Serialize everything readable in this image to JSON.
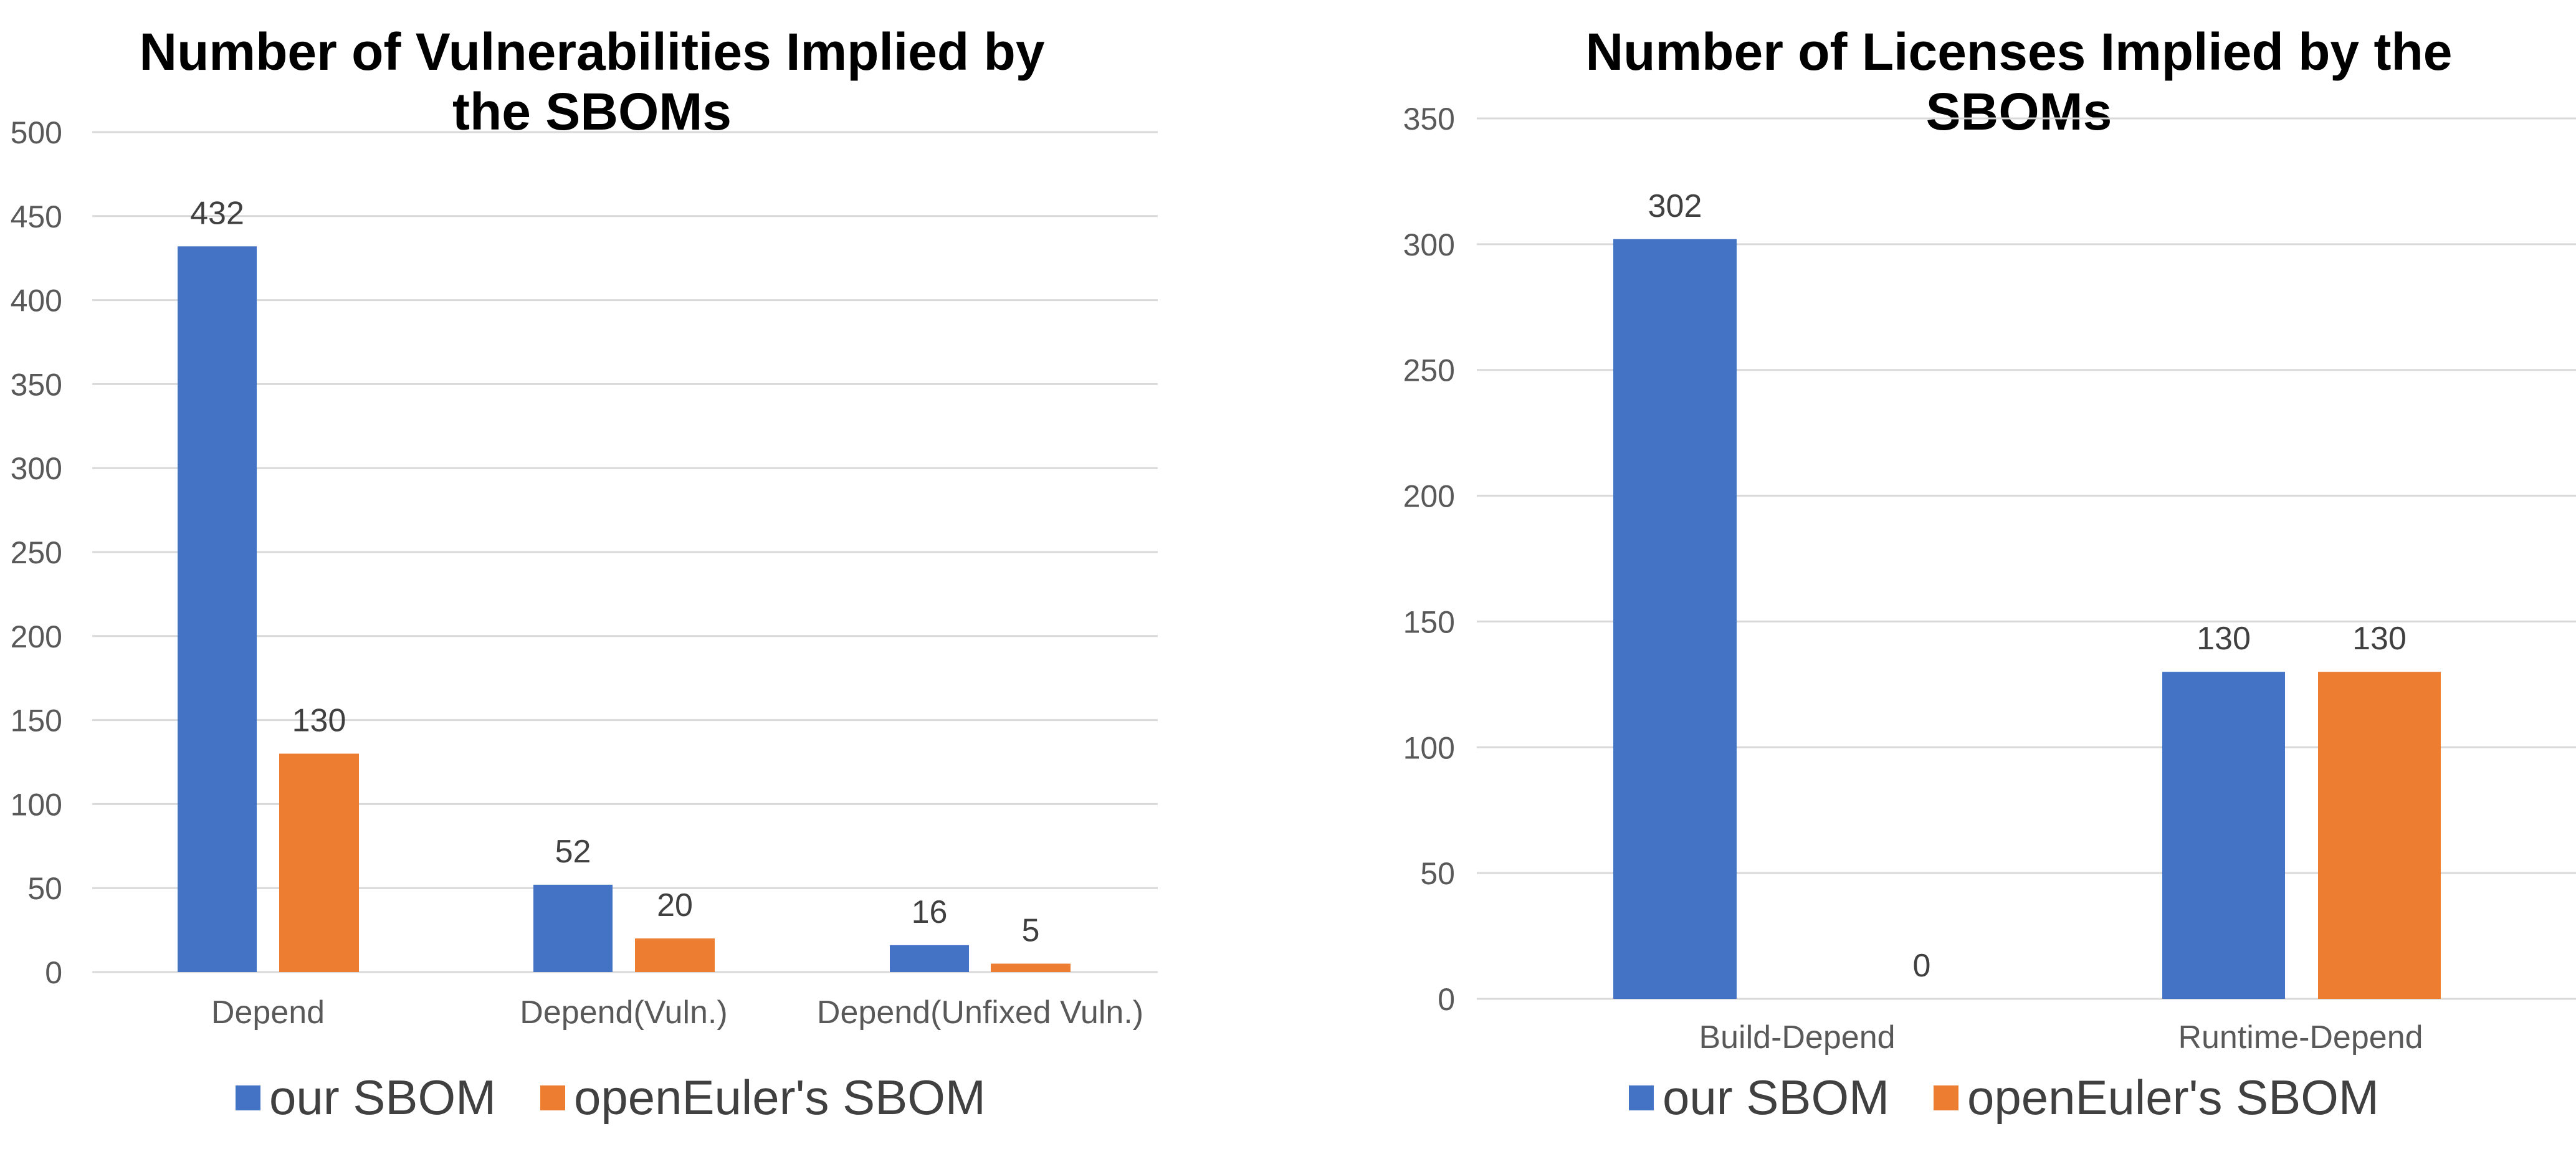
{
  "chart_data": [
    {
      "type": "bar",
      "title_lines": [
        "Number of Vulnerabilities Implied by",
        "the SBOMs"
      ],
      "xlabel": "",
      "ylabel": "",
      "categories": [
        "Depend",
        "Depend(Vuln.)",
        "Depend(Unfixed Vuln.)"
      ],
      "series": [
        {
          "name": "our SBOM",
          "color": "#4472c4",
          "values": [
            432,
            52,
            16
          ]
        },
        {
          "name": "openEuler's SBOM",
          "color": "#ed7d31",
          "values": [
            130,
            20,
            5
          ]
        }
      ],
      "ylim": [
        0,
        500
      ],
      "yticks": [
        0,
        50,
        100,
        150,
        200,
        250,
        300,
        350,
        400,
        450,
        500
      ],
      "grid": true,
      "legend": "bottom"
    },
    {
      "type": "bar",
      "title_lines": [
        "Number of Licenses Implied by the",
        "SBOMs"
      ],
      "xlabel": "",
      "ylabel": "",
      "categories": [
        "Build-Depend",
        "Runtime-Depend"
      ],
      "series": [
        {
          "name": "our SBOM",
          "color": "#4472c4",
          "values": [
            302,
            130
          ]
        },
        {
          "name": "openEuler's SBOM",
          "color": "#ed7d31",
          "values": [
            0,
            130
          ]
        }
      ],
      "ylim": [
        0,
        350
      ],
      "yticks": [
        0,
        50,
        100,
        150,
        200,
        250,
        300,
        350
      ],
      "grid": true,
      "legend": "bottom"
    }
  ]
}
